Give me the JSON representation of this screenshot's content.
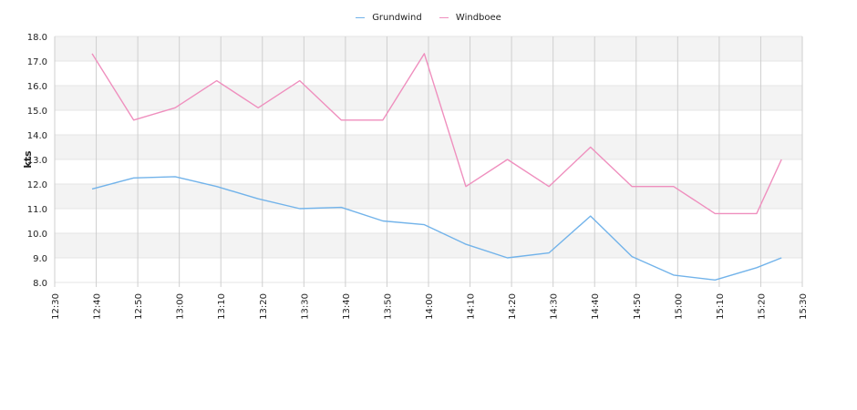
{
  "chart_data": {
    "type": "line",
    "ylabel": "kts",
    "xlabel": "",
    "ylim": [
      8.0,
      18.0
    ],
    "xlim": [
      "12:30",
      "15:30"
    ],
    "y_ticks": [
      "8.0",
      "9.0",
      "10.0",
      "11.0",
      "12.0",
      "13.0",
      "14.0",
      "15.0",
      "16.0",
      "17.0",
      "18.0"
    ],
    "x_ticks": [
      "12:30",
      "12:40",
      "12:50",
      "13:00",
      "13:10",
      "13:20",
      "13:30",
      "13:40",
      "13:50",
      "14:00",
      "14:10",
      "14:20",
      "14:30",
      "14:40",
      "14:50",
      "15:00",
      "15:10",
      "15:20",
      "15:30"
    ],
    "grid": true,
    "legend": "top-center",
    "series": [
      {
        "name": "Grundwind",
        "color": "#72b3ea",
        "x": [
          "12:39",
          "12:49",
          "12:59",
          "13:09",
          "13:19",
          "13:29",
          "13:39",
          "13:49",
          "13:59",
          "14:09",
          "14:19",
          "14:29",
          "14:39",
          "14:49",
          "14:59",
          "15:09",
          "15:19",
          "15:25"
        ],
        "values": [
          11.8,
          12.25,
          12.3,
          11.9,
          11.4,
          11.0,
          11.05,
          10.5,
          10.35,
          9.55,
          9.0,
          9.2,
          10.7,
          9.05,
          8.3,
          8.1,
          8.6,
          9.0
        ]
      },
      {
        "name": "Windboee",
        "color": "#ef8fbe",
        "x": [
          "12:39",
          "12:49",
          "12:59",
          "13:09",
          "13:19",
          "13:29",
          "13:39",
          "13:49",
          "13:59",
          "14:09",
          "14:19",
          "14:29",
          "14:39",
          "14:49",
          "14:59",
          "15:09",
          "15:19",
          "15:25"
        ],
        "values": [
          17.3,
          14.6,
          15.1,
          16.2,
          15.1,
          16.2,
          14.6,
          14.6,
          17.3,
          11.9,
          13.0,
          11.9,
          13.5,
          11.9,
          11.9,
          10.8,
          10.8,
          13.0
        ]
      }
    ]
  }
}
